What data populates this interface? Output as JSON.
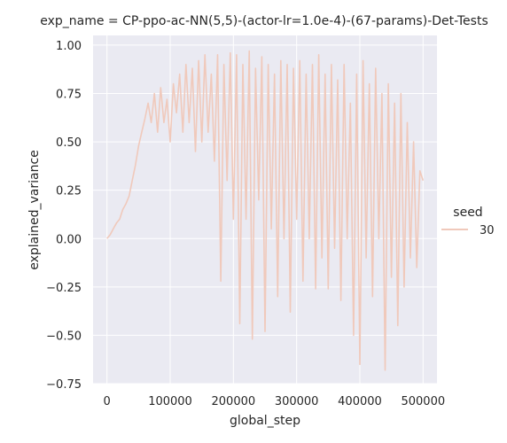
{
  "chart_data": {
    "type": "line",
    "title": "exp_name = CP-ppo-ac-NN(5,5)-(actor-lr=1.0e-4)-(67-params)-Det-Tests",
    "xlabel": "global_step",
    "ylabel": "explained_variance",
    "xlim": [
      -22000,
      522000
    ],
    "ylim": [
      -0.75,
      1.05
    ],
    "xticks": [
      0,
      100000,
      200000,
      300000,
      400000,
      500000
    ],
    "xtick_labels": [
      "0",
      "100000",
      "200000",
      "300000",
      "400000",
      "500000"
    ],
    "yticks": [
      -0.75,
      -0.5,
      -0.25,
      0.0,
      0.25,
      0.5,
      0.75,
      1.0
    ],
    "ytick_labels": [
      "−0.75",
      "−0.50",
      "−0.25",
      "0.00",
      "0.25",
      "0.50",
      "0.75",
      "1.00"
    ],
    "grid": true,
    "legend": {
      "title": "seed",
      "placement": "right",
      "entries": [
        "30"
      ]
    },
    "colors": {
      "series": "#f0c9bb",
      "background": "#eaeaf2",
      "grid": "#ffffff"
    },
    "series": [
      {
        "name": "30",
        "x": [
          0,
          5000,
          10000,
          15000,
          20000,
          25000,
          30000,
          35000,
          40000,
          45000,
          50000,
          55000,
          60000,
          65000,
          70000,
          75000,
          80000,
          85000,
          90000,
          95000,
          100000,
          105000,
          110000,
          115000,
          120000,
          125000,
          130000,
          135000,
          140000,
          145000,
          150000,
          155000,
          160000,
          165000,
          170000,
          175000,
          180000,
          185000,
          190000,
          195000,
          200000,
          205000,
          210000,
          215000,
          220000,
          225000,
          230000,
          235000,
          240000,
          245000,
          250000,
          255000,
          260000,
          265000,
          270000,
          275000,
          280000,
          285000,
          290000,
          295000,
          300000,
          305000,
          310000,
          315000,
          320000,
          325000,
          330000,
          335000,
          340000,
          345000,
          350000,
          355000,
          360000,
          365000,
          370000,
          375000,
          380000,
          385000,
          390000,
          395000,
          400000,
          405000,
          410000,
          415000,
          420000,
          425000,
          430000,
          435000,
          440000,
          445000,
          450000,
          455000,
          460000,
          465000,
          470000,
          475000,
          480000,
          485000,
          490000,
          495000,
          500000
        ],
        "y": [
          0.0,
          0.02,
          0.05,
          0.08,
          0.1,
          0.15,
          0.18,
          0.22,
          0.3,
          0.38,
          0.48,
          0.55,
          0.62,
          0.7,
          0.6,
          0.75,
          0.55,
          0.78,
          0.6,
          0.72,
          0.5,
          0.8,
          0.65,
          0.85,
          0.55,
          0.9,
          0.6,
          0.88,
          0.45,
          0.92,
          0.5,
          0.95,
          0.55,
          0.85,
          0.4,
          0.95,
          -0.22,
          0.9,
          0.3,
          0.96,
          0.1,
          0.95,
          -0.44,
          0.9,
          0.1,
          0.97,
          -0.52,
          0.88,
          0.2,
          0.94,
          -0.48,
          0.9,
          0.05,
          0.85,
          -0.3,
          0.92,
          0.0,
          0.9,
          -0.38,
          0.88,
          0.1,
          0.92,
          -0.22,
          0.85,
          0.0,
          0.9,
          -0.26,
          0.95,
          -0.1,
          0.85,
          -0.26,
          0.9,
          -0.05,
          0.82,
          -0.32,
          0.9,
          0.0,
          0.7,
          -0.5,
          0.85,
          -0.65,
          0.92,
          -0.1,
          0.8,
          -0.3,
          0.88,
          0.0,
          0.75,
          -0.68,
          0.8,
          -0.2,
          0.7,
          -0.45,
          0.75,
          -0.25,
          0.6,
          -0.1,
          0.5,
          -0.15,
          0.35,
          0.3
        ]
      }
    ]
  }
}
